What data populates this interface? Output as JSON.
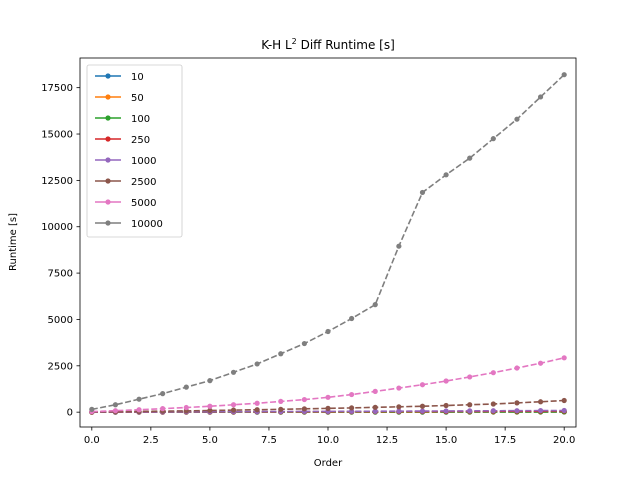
{
  "chart_data": {
    "type": "line",
    "title_main": "K-H L",
    "title_sup": "2",
    "title_rest": " Diff Runtime [s]",
    "xlabel": "Order",
    "ylabel": "Runtime [s]",
    "xlim": [
      -0.5,
      20.5
    ],
    "ylim": [
      -800,
      19100
    ],
    "x_ticks": [
      0.0,
      2.5,
      5.0,
      7.5,
      10.0,
      12.5,
      15.0,
      17.5,
      20.0
    ],
    "x_tick_labels": [
      "0.0",
      "2.5",
      "5.0",
      "7.5",
      "10.0",
      "12.5",
      "15.0",
      "17.5",
      "20.0"
    ],
    "y_ticks": [
      0,
      2500,
      5000,
      7500,
      10000,
      12500,
      15000,
      17500
    ],
    "y_tick_labels": [
      "0",
      "2500",
      "5000",
      "7500",
      "10000",
      "12500",
      "15000",
      "17500"
    ],
    "grid": false,
    "legend_position": "upper-left",
    "line_style": "dashed with dot markers",
    "x": [
      0,
      1,
      2,
      3,
      4,
      5,
      6,
      7,
      8,
      9,
      10,
      11,
      12,
      13,
      14,
      15,
      16,
      17,
      18,
      19,
      20
    ],
    "series": [
      {
        "name": "10",
        "color": "#1f77b4",
        "values": [
          0.5,
          0.6,
          0.8,
          1,
          1.2,
          1.4,
          1.6,
          1.8,
          2,
          2.2,
          2.4,
          2.6,
          2.8,
          3,
          3.2,
          3.4,
          3.6,
          3.8,
          4,
          4.2,
          4.4
        ]
      },
      {
        "name": "50",
        "color": "#ff7f0e",
        "values": [
          1,
          1.5,
          2,
          2.5,
          3,
          3.5,
          4,
          4.5,
          5,
          5.5,
          6,
          6.5,
          7,
          7.5,
          8,
          8.5,
          9,
          9.5,
          10,
          10.5,
          11
        ]
      },
      {
        "name": "100",
        "color": "#2ca02c",
        "values": [
          2,
          3,
          4,
          5,
          6,
          7,
          8,
          9,
          10,
          11,
          12,
          13,
          14,
          15,
          16,
          17,
          18,
          19,
          20,
          21,
          22
        ]
      },
      {
        "name": "250",
        "color": "#d62728",
        "values": [
          3,
          5,
          7,
          9,
          11,
          13,
          16,
          19,
          22,
          25,
          28,
          31,
          34,
          37,
          40,
          43,
          46,
          49,
          52,
          55,
          58
        ]
      },
      {
        "name": "1000",
        "color": "#9467bd",
        "values": [
          5,
          8,
          12,
          15,
          18,
          22,
          26,
          30,
          34,
          38,
          42,
          46,
          50,
          55,
          60,
          65,
          70,
          75,
          80,
          85,
          90
        ]
      },
      {
        "name": "2500",
        "color": "#8c564b",
        "values": [
          10,
          25,
          40,
          55,
          70,
          90,
          110,
          130,
          155,
          180,
          205,
          230,
          260,
          290,
          320,
          360,
          400,
          440,
          500,
          560,
          630
        ]
      },
      {
        "name": "5000",
        "color": "#e377c2",
        "values": [
          30,
          80,
          130,
          190,
          250,
          320,
          400,
          480,
          580,
          680,
          800,
          950,
          1120,
          1300,
          1480,
          1680,
          1900,
          2130,
          2380,
          2640,
          2930
        ]
      },
      {
        "name": "10000",
        "color": "#7f7f7f",
        "values": [
          150,
          400,
          700,
          1000,
          1350,
          1700,
          2150,
          2600,
          3150,
          3700,
          4350,
          5050,
          5800,
          8950,
          11850,
          12800,
          13700,
          14750,
          15800,
          17000,
          18200
        ]
      }
    ]
  }
}
